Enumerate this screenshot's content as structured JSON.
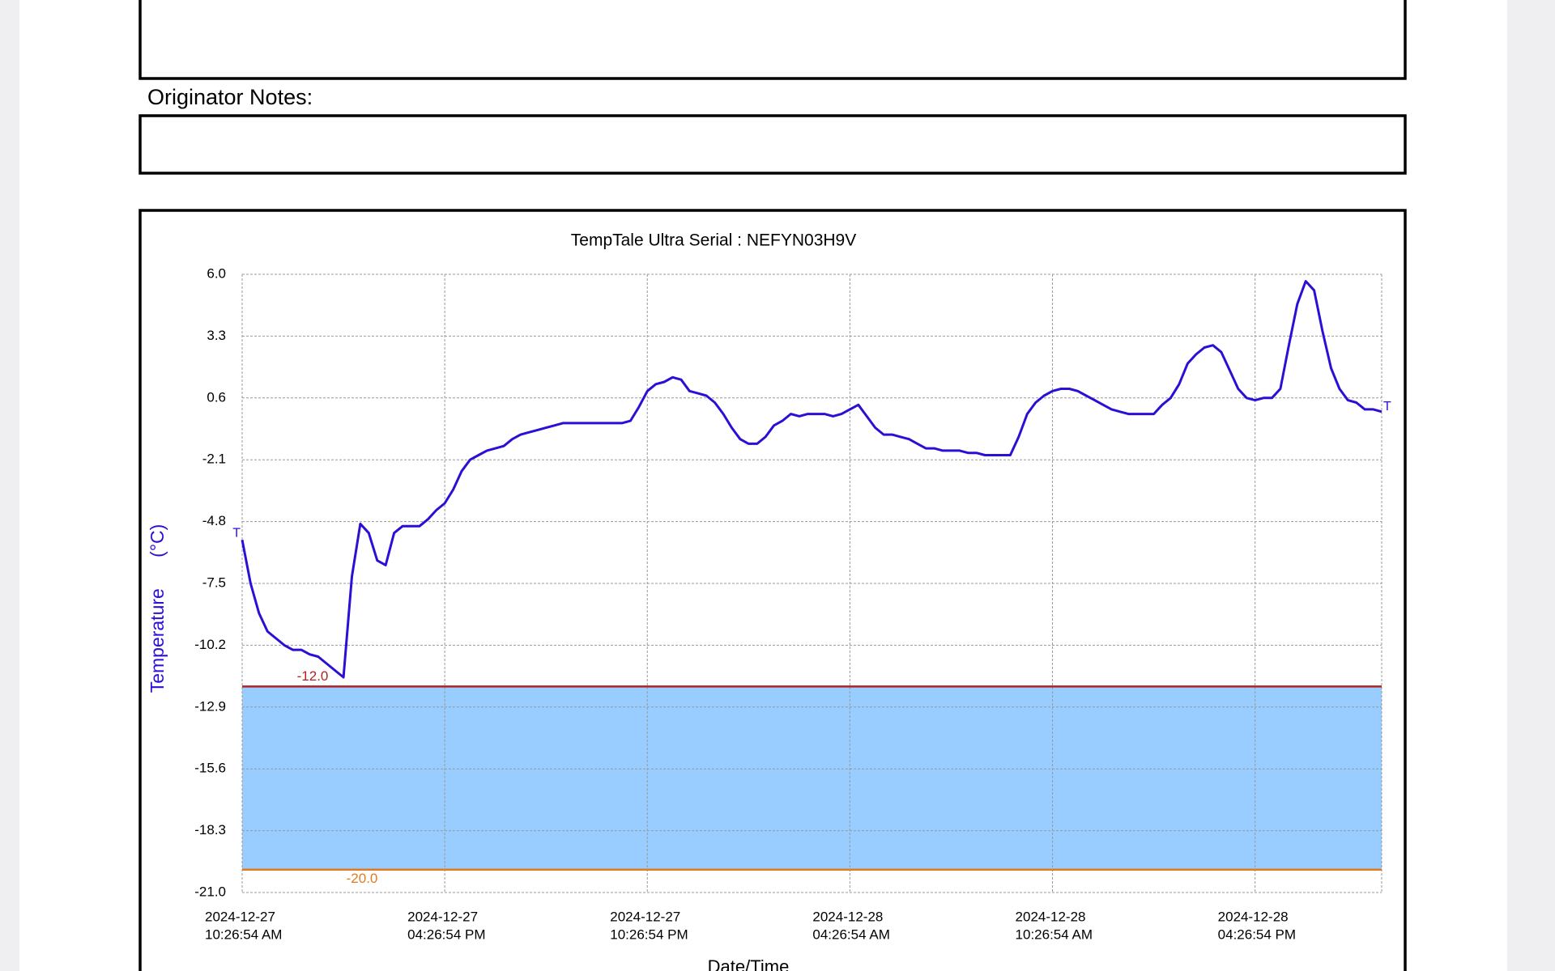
{
  "notes_label": "Originator Notes:",
  "chart_data": {
    "type": "line",
    "title": "TempTale Ultra  Serial : NEFYN03H9V",
    "y_label": "Temperature      (°C)",
    "x_label": "Date/Time",
    "start_marker": "T",
    "end_marker": "T",
    "color": "#2a0fd6",
    "grid": true,
    "band_color": "#99ccff",
    "thresholds": [
      {
        "value": -12,
        "label": "-12.0",
        "color": "#b22222"
      },
      {
        "value": -20,
        "label": "-20.0",
        "color": "#e07b20"
      }
    ],
    "xlim": [
      "2024-12-27T10:26:54",
      "2024-12-28T20:11:54"
    ],
    "xticks": [
      {
        "value": "2024-12-27T10:26:54",
        "label": [
          "2024-12-27",
          "10:26:54 AM"
        ]
      },
      {
        "value": "2024-12-27T16:26:54",
        "label": [
          "2024-12-27",
          "04:26:54 PM"
        ]
      },
      {
        "value": "2024-12-27T22:26:54",
        "label": [
          "2024-12-27",
          "10:26:54 PM"
        ]
      },
      {
        "value": "2024-12-28T04:26:54",
        "label": [
          "2024-12-28",
          "04:26:54 AM"
        ]
      },
      {
        "value": "2024-12-28T10:26:54",
        "label": [
          "2024-12-28",
          "10:26:54 AM"
        ]
      },
      {
        "value": "2024-12-28T16:26:54",
        "label": [
          "2024-12-28",
          "04:26:54 PM"
        ]
      }
    ],
    "ylim": [
      -21,
      6
    ],
    "yticks": [
      {
        "value": 6,
        "label": "6.0"
      },
      {
        "value": 3.3,
        "label": "3.3"
      },
      {
        "value": 0.6,
        "label": "0.6"
      },
      {
        "value": -2.1,
        "label": "-2.1"
      },
      {
        "value": -4.8,
        "label": "-4.8"
      },
      {
        "value": -7.5,
        "label": "-7.5"
      },
      {
        "value": -10.2,
        "label": "-10.2"
      },
      {
        "value": -12.9,
        "label": "-12.9"
      },
      {
        "value": -15.6,
        "label": "-15.6"
      },
      {
        "value": -18.3,
        "label": "-18.3"
      },
      {
        "value": -21,
        "label": "-21.0"
      }
    ],
    "x": [
      "2024-12-27T10:26:54",
      "2024-12-27T10:41:54",
      "2024-12-27T10:56:54",
      "2024-12-27T11:11:54",
      "2024-12-27T11:26:54",
      "2024-12-27T11:41:54",
      "2024-12-27T11:56:54",
      "2024-12-27T12:11:54",
      "2024-12-27T12:26:54",
      "2024-12-27T12:41:54",
      "2024-12-27T12:56:54",
      "2024-12-27T13:11:54",
      "2024-12-27T13:26:54",
      "2024-12-27T13:41:54",
      "2024-12-27T13:56:54",
      "2024-12-27T14:11:54",
      "2024-12-27T14:26:54",
      "2024-12-27T14:41:54",
      "2024-12-27T14:56:54",
      "2024-12-27T15:11:54",
      "2024-12-27T15:26:54",
      "2024-12-27T15:41:54",
      "2024-12-27T15:56:54",
      "2024-12-27T16:11:54",
      "2024-12-27T16:26:54",
      "2024-12-27T16:41:54",
      "2024-12-27T16:56:54",
      "2024-12-27T17:11:54",
      "2024-12-27T17:26:54",
      "2024-12-27T17:41:54",
      "2024-12-27T17:56:54",
      "2024-12-27T18:11:54",
      "2024-12-27T18:26:54",
      "2024-12-27T18:41:54",
      "2024-12-27T18:56:54",
      "2024-12-27T19:11:54",
      "2024-12-27T19:26:54",
      "2024-12-27T19:41:54",
      "2024-12-27T19:56:54",
      "2024-12-27T20:11:54",
      "2024-12-27T20:26:54",
      "2024-12-27T20:41:54",
      "2024-12-27T20:56:54",
      "2024-12-27T21:11:54",
      "2024-12-27T21:26:54",
      "2024-12-27T21:41:54",
      "2024-12-27T21:56:54",
      "2024-12-27T22:11:54",
      "2024-12-27T22:26:54",
      "2024-12-27T22:41:54",
      "2024-12-27T22:56:54",
      "2024-12-27T23:11:54",
      "2024-12-27T23:26:54",
      "2024-12-27T23:41:54",
      "2024-12-27T23:56:54",
      "2024-12-28T00:11:54",
      "2024-12-28T00:26:54",
      "2024-12-28T00:41:54",
      "2024-12-28T00:56:54",
      "2024-12-28T01:11:54",
      "2024-12-28T01:26:54",
      "2024-12-28T01:41:54",
      "2024-12-28T01:56:54",
      "2024-12-28T02:11:54",
      "2024-12-28T02:26:54",
      "2024-12-28T02:41:54",
      "2024-12-28T02:56:54",
      "2024-12-28T03:11:54",
      "2024-12-28T03:26:54",
      "2024-12-28T03:41:54",
      "2024-12-28T03:56:54",
      "2024-12-28T04:11:54",
      "2024-12-28T04:26:54",
      "2024-12-28T04:41:54",
      "2024-12-28T04:56:54",
      "2024-12-28T05:11:54",
      "2024-12-28T05:26:54",
      "2024-12-28T05:41:54",
      "2024-12-28T05:56:54",
      "2024-12-28T06:11:54",
      "2024-12-28T06:26:54",
      "2024-12-28T06:41:54",
      "2024-12-28T06:56:54",
      "2024-12-28T07:11:54",
      "2024-12-28T07:26:54",
      "2024-12-28T07:41:54",
      "2024-12-28T07:56:54",
      "2024-12-28T08:11:54",
      "2024-12-28T08:26:54",
      "2024-12-28T08:41:54",
      "2024-12-28T08:56:54",
      "2024-12-28T09:11:54",
      "2024-12-28T09:26:54",
      "2024-12-28T09:41:54",
      "2024-12-28T09:56:54",
      "2024-12-28T10:11:54",
      "2024-12-28T10:26:54",
      "2024-12-28T10:41:54",
      "2024-12-28T10:56:54",
      "2024-12-28T11:11:54",
      "2024-12-28T11:26:54",
      "2024-12-28T11:41:54",
      "2024-12-28T11:56:54",
      "2024-12-28T12:11:54",
      "2024-12-28T12:26:54",
      "2024-12-28T12:41:54",
      "2024-12-28T12:56:54",
      "2024-12-28T13:11:54",
      "2024-12-28T13:26:54",
      "2024-12-28T13:41:54",
      "2024-12-28T13:56:54",
      "2024-12-28T14:11:54",
      "2024-12-28T14:26:54",
      "2024-12-28T14:41:54",
      "2024-12-28T14:56:54",
      "2024-12-28T15:11:54",
      "2024-12-28T15:26:54",
      "2024-12-28T15:41:54",
      "2024-12-28T15:56:54",
      "2024-12-28T16:11:54",
      "2024-12-28T16:26:54",
      "2024-12-28T16:41:54",
      "2024-12-28T16:56:54",
      "2024-12-28T17:11:54",
      "2024-12-28T17:26:54",
      "2024-12-28T17:41:54",
      "2024-12-28T17:56:54",
      "2024-12-28T18:11:54",
      "2024-12-28T18:26:54",
      "2024-12-28T18:41:54",
      "2024-12-28T18:56:54",
      "2024-12-28T19:11:54",
      "2024-12-28T19:26:54",
      "2024-12-28T19:41:54",
      "2024-12-28T19:56:54",
      "2024-12-28T20:11:54"
    ],
    "values": [
      -5.6,
      -7.5,
      -8.8,
      -9.6,
      -9.9,
      -10.2,
      -10.4,
      -10.4,
      -10.6,
      -10.7,
      -11.0,
      -11.3,
      -11.6,
      -7.2,
      -4.9,
      -5.3,
      -6.5,
      -6.7,
      -5.3,
      -5.0,
      -5.0,
      -5.0,
      -4.7,
      -4.3,
      -4.0,
      -3.4,
      -2.6,
      -2.1,
      -1.9,
      -1.7,
      -1.6,
      -1.5,
      -1.2,
      -1.0,
      -0.9,
      -0.8,
      -0.7,
      -0.6,
      -0.5,
      -0.5,
      -0.5,
      -0.5,
      -0.5,
      -0.5,
      -0.5,
      -0.5,
      -0.4,
      0.2,
      0.9,
      1.2,
      1.3,
      1.5,
      1.4,
      0.9,
      0.8,
      0.7,
      0.4,
      -0.1,
      -0.7,
      -1.2,
      -1.4,
      -1.4,
      -1.1,
      -0.6,
      -0.4,
      -0.1,
      -0.2,
      -0.1,
      -0.1,
      -0.1,
      -0.2,
      -0.1,
      0.1,
      0.3,
      -0.2,
      -0.7,
      -1.0,
      -1.0,
      -1.1,
      -1.2,
      -1.4,
      -1.6,
      -1.6,
      -1.7,
      -1.7,
      -1.7,
      -1.8,
      -1.8,
      -1.9,
      -1.9,
      -1.9,
      -1.9,
      -1.1,
      -0.1,
      0.4,
      0.7,
      0.9,
      1.0,
      1.0,
      0.9,
      0.7,
      0.5,
      0.3,
      0.1,
      0.0,
      -0.1,
      -0.1,
      -0.1,
      -0.1,
      0.3,
      0.6,
      1.2,
      2.1,
      2.5,
      2.8,
      2.9,
      2.6,
      1.8,
      1.0,
      0.6,
      0.5,
      0.6,
      0.6,
      1.0,
      2.9,
      4.7,
      5.7,
      5.3,
      3.5,
      1.9,
      1.0,
      0.5,
      0.4,
      0.1,
      0.1,
      0.0
    ]
  }
}
